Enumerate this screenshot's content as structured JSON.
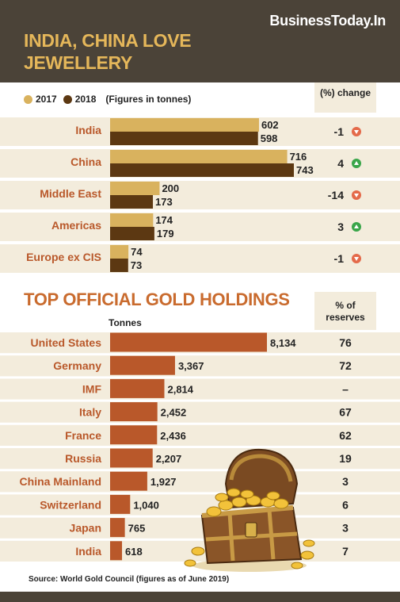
{
  "brand": "BusinessToday.In",
  "section1": {
    "title": "INDIA, CHINA LOVE JEWELLERY",
    "legend": [
      "2017",
      "2018"
    ],
    "note": "(Figures in tonnes)",
    "change_header": "(%) change"
  },
  "section2": {
    "title": "TOP OFFICIAL GOLD HOLDINGS",
    "unit_label": "Tonnes",
    "reserves_header": "% of reserves"
  },
  "source": "Source: World Gold Council (figures as of June 2019)",
  "colors": {
    "header_bg": "#4b4338",
    "gold_2017": "#d9b25e",
    "brown_2018": "#5c3812",
    "holdings_bar": "#b9582a",
    "label_text": "#b9582a",
    "row_band": "#f3ecdc",
    "up": "#3aa64a",
    "down": "#e46a4a"
  },
  "chart_data": [
    {
      "type": "bar",
      "orientation": "horizontal",
      "title": "INDIA, CHINA LOVE JEWELLERY",
      "categories": [
        "India",
        "China",
        "Middle East",
        "Americas",
        "Europe ex CIS"
      ],
      "series": [
        {
          "name": "2017",
          "values": [
            602,
            716,
            200,
            174,
            74
          ]
        },
        {
          "name": "2018",
          "values": [
            598,
            743,
            173,
            179,
            73
          ]
        }
      ],
      "change_pct": [
        "-1",
        "4",
        "-14",
        "3",
        "-1"
      ],
      "change_dir": [
        "down",
        "up",
        "down",
        "up",
        "down"
      ],
      "xlim": [
        0,
        800
      ]
    },
    {
      "type": "bar",
      "orientation": "horizontal",
      "title": "TOP OFFICIAL GOLD HOLDINGS",
      "categories": [
        "United States",
        "Germany",
        "IMF",
        "Italy",
        "France",
        "Russia",
        "China Mainland",
        "Switzerland",
        "Japan",
        "India"
      ],
      "values": [
        8134,
        3367,
        2814,
        2452,
        2436,
        2207,
        1927,
        1040,
        765,
        618
      ],
      "value_labels": [
        "8,134",
        "3,367",
        "2,814",
        "2,452",
        "2,436",
        "2,207",
        "1,927",
        "1,040",
        "765",
        "618"
      ],
      "reserves_pct": [
        "76",
        "72",
        "–",
        "67",
        "62",
        "19",
        "3",
        "6",
        "3",
        "7"
      ],
      "xlim": [
        0,
        8134
      ]
    }
  ]
}
